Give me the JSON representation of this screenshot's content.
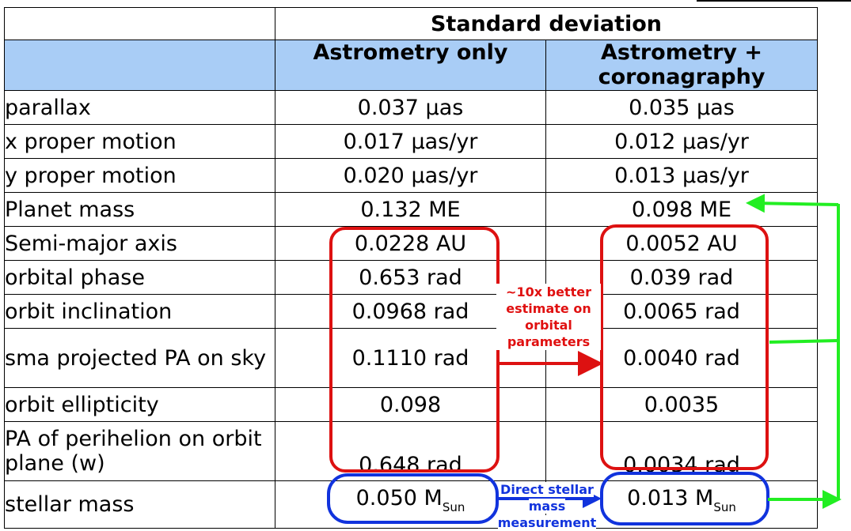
{
  "header": {
    "group_title": "Standard deviation",
    "col1": "Astrometry only",
    "col2": "Astrometry + coronagraphy"
  },
  "rows": [
    {
      "label": "parallax",
      "a": "0.037 µas",
      "b": "0.035 µas"
    },
    {
      "label": "x proper motion",
      "a": "0.017 µas/yr",
      "b": "0.012 µas/yr"
    },
    {
      "label": "y proper motion",
      "a": "0.020 µas/yr",
      "b": "0.013 µas/yr"
    },
    {
      "label": "Planet mass",
      "a": "0.132 ME",
      "b": "0.098 ME"
    },
    {
      "label": "Semi-major axis",
      "a": "0.0228 AU",
      "b": "0.0052 AU"
    },
    {
      "label": "orbital phase",
      "a": "0.653 rad",
      "b": "0.039 rad"
    },
    {
      "label": "orbit inclination",
      "a": "0.0968 rad",
      "b": "0.0065 rad"
    },
    {
      "label": "sma projected PA on sky",
      "a": "0.1110 rad",
      "b": "0.0040 rad"
    },
    {
      "label": "orbit ellipticity",
      "a": "0.098",
      "b": "0.0035"
    },
    {
      "label": "PA of perihelion on orbit plane (w)",
      "a": "0.648 rad",
      "b": "0.0034 rad"
    }
  ],
  "stellar": {
    "label": "stellar mass",
    "a": "0.050 M",
    "b": "0.013 M",
    "unit_sub": "Sun"
  },
  "annotations": {
    "red_note": "~10x better estimate on orbital parameters",
    "blue_note": "Direct stellar mass measurement"
  },
  "colors": {
    "header_bg": "#a9cdf6",
    "red": "#dd1111",
    "blue": "#1133dd",
    "green": "#22ee22"
  }
}
